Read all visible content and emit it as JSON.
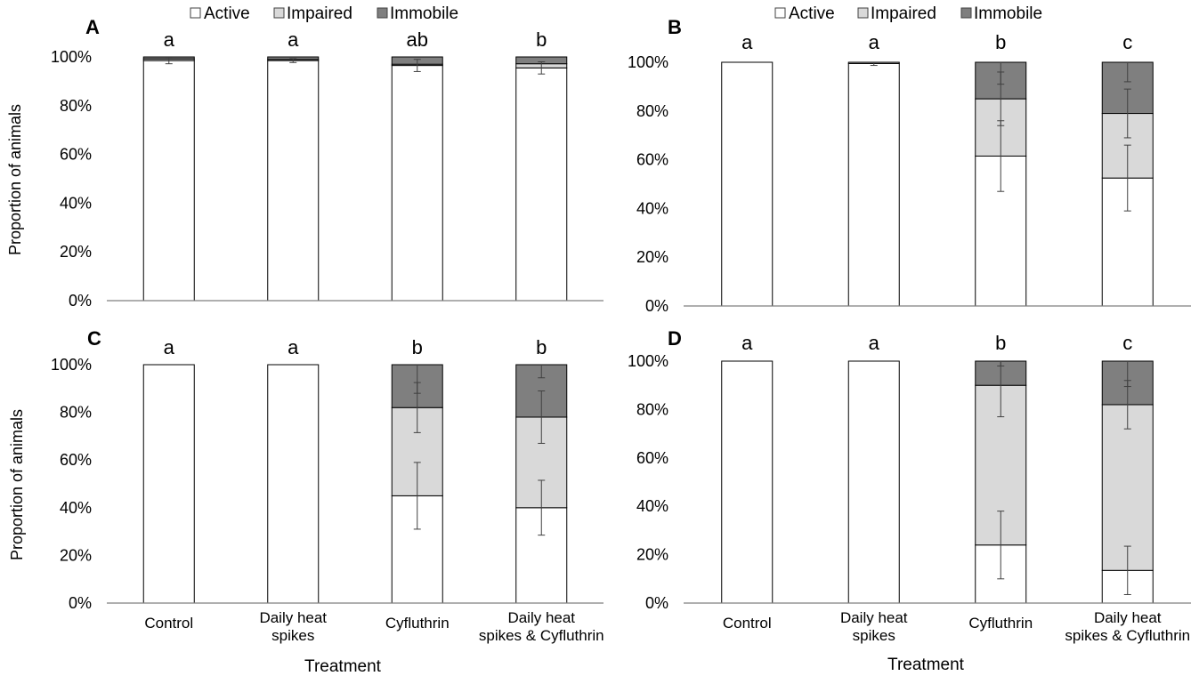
{
  "figure": {
    "legend": {
      "placement": "top-center",
      "items": [
        "Active",
        "Impaired",
        "Immobile"
      ]
    },
    "treatment_label": "Treatment"
  },
  "colors": {
    "Active": "#ffffff",
    "Impaired": "#d9d9d9",
    "Immobile": "#7f7f7f",
    "stroke": "#000000"
  },
  "chart_data": [
    {
      "type": "bar",
      "stacked": true,
      "panel": "A",
      "title": "",
      "xlabel": "",
      "ylabel": "Proportion of animals",
      "ylim": [
        0,
        100
      ],
      "yticks": [
        "0%",
        "20%",
        "40%",
        "60%",
        "80%",
        "100%"
      ],
      "categories": [
        "Control",
        "Daily heat spikes",
        "Cyfluthrin",
        "Daily heat spikes & Cyfluthrin"
      ],
      "x_tick_labels_shown": false,
      "legend_shown": true,
      "significance_letters": [
        "a",
        "a",
        "ab",
        "b"
      ],
      "series": [
        {
          "name": "Active",
          "values": [
            98.5,
            98.5,
            96.5,
            95.5
          ]
        },
        {
          "name": "Impaired",
          "values": [
            0.7,
            0.5,
            0.5,
            1.7
          ]
        },
        {
          "name": "Immobile",
          "values": [
            0.8,
            1.0,
            3.0,
            2.8
          ]
        }
      ],
      "error_bars": [
        [
          1.3,
          0.8,
          2.5,
          2.5
        ],
        [
          0,
          0,
          0,
          0
        ],
        [
          0,
          0,
          0,
          0
        ]
      ]
    },
    {
      "type": "bar",
      "stacked": true,
      "panel": "B",
      "title": "",
      "xlabel": "",
      "ylabel": "",
      "ylim": [
        0,
        100
      ],
      "yticks": [
        "0%",
        "20%",
        "40%",
        "60%",
        "80%",
        "100%"
      ],
      "categories": [
        "Control",
        "Daily heat spikes",
        "Cyfluthrin",
        "Daily heat spikes & Cyfluthrin"
      ],
      "x_tick_labels_shown": false,
      "legend_shown": true,
      "significance_letters": [
        "a",
        "a",
        "b",
        "c"
      ],
      "series": [
        {
          "name": "Active",
          "values": [
            100,
            99.5,
            61.5,
            52.5
          ]
        },
        {
          "name": "Impaired",
          "values": [
            0,
            0.5,
            23.5,
            26.5
          ]
        },
        {
          "name": "Immobile",
          "values": [
            0,
            0,
            15.0,
            21.0
          ]
        }
      ],
      "error_bars": [
        [
          0,
          0.8,
          14.5,
          13.5
        ],
        [
          0,
          0,
          11,
          10
        ],
        [
          0,
          0,
          9,
          8
        ]
      ]
    },
    {
      "type": "bar",
      "stacked": true,
      "panel": "C",
      "title": "",
      "xlabel": "Treatment",
      "ylabel": "Proportion of animals",
      "ylim": [
        0,
        100
      ],
      "yticks": [
        "0%",
        "20%",
        "40%",
        "60%",
        "80%",
        "100%"
      ],
      "categories": [
        "Control",
        "Daily heat spikes",
        "Cyfluthrin",
        "Daily heat spikes & Cyfluthrin"
      ],
      "x_tick_labels_shown": true,
      "legend_shown": false,
      "significance_letters": [
        "a",
        "a",
        "b",
        "b"
      ],
      "series": [
        {
          "name": "Active",
          "values": [
            100,
            100,
            45.0,
            40.0
          ]
        },
        {
          "name": "Impaired",
          "values": [
            0,
            0,
            37.0,
            38.0
          ]
        },
        {
          "name": "Immobile",
          "values": [
            0,
            0,
            18.0,
            22.0
          ]
        }
      ],
      "error_bars": [
        [
          0,
          0,
          14,
          11.5
        ],
        [
          0,
          0,
          10.5,
          11
        ],
        [
          0,
          0,
          12,
          5.5
        ]
      ]
    },
    {
      "type": "bar",
      "stacked": true,
      "panel": "D",
      "title": "",
      "xlabel": "Treatment",
      "ylabel": "",
      "ylim": [
        0,
        100
      ],
      "yticks": [
        "0%",
        "20%",
        "40%",
        "60%",
        "80%",
        "100%"
      ],
      "categories": [
        "Control",
        "Daily heat spikes",
        "Cyfluthrin",
        "Daily heat spikes & Cyfluthrin"
      ],
      "x_tick_labels_shown": true,
      "legend_shown": false,
      "significance_letters": [
        "a",
        "a",
        "b",
        "c"
      ],
      "series": [
        {
          "name": "Active",
          "values": [
            100,
            100,
            24.0,
            13.5
          ]
        },
        {
          "name": "Impaired",
          "values": [
            0,
            0,
            66.0,
            68.5
          ]
        },
        {
          "name": "Immobile",
          "values": [
            0,
            0,
            10.0,
            18.0
          ]
        }
      ],
      "error_bars": [
        [
          0,
          0,
          14,
          10
        ],
        [
          0,
          0,
          13,
          10
        ],
        [
          0,
          0,
          2,
          10.5
        ]
      ]
    }
  ]
}
